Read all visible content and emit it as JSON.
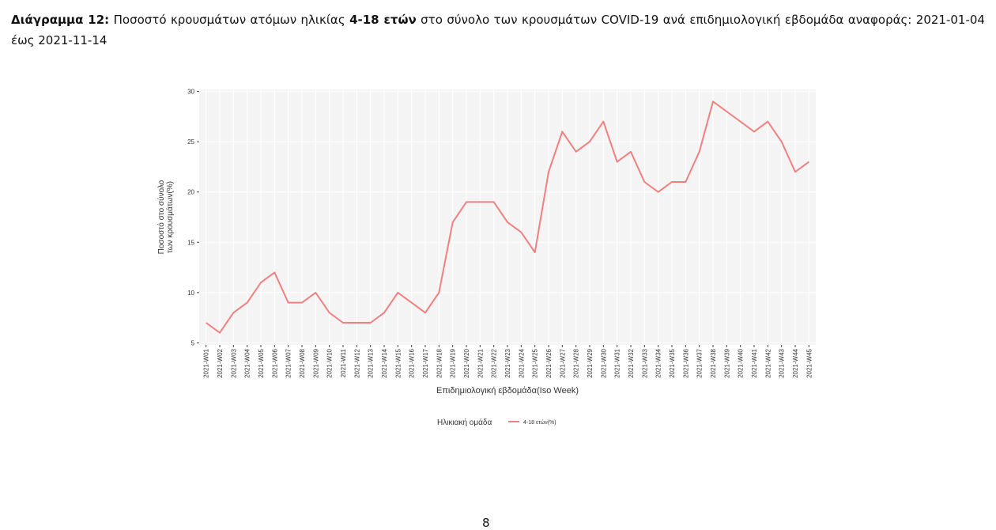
{
  "caption": {
    "label": "Διάγραμμα 12:",
    "text1": "Ποσοστό κρουσμάτων ατόμων ηλικίας",
    "bold": "4-18 ετών",
    "text2": "στο σύνολο των κρουσμάτων COVID-19 ανά επιδημιολογική εβδομάδα αναφοράς: 2021-01-04 έως 2021-11-14"
  },
  "page_number": "8",
  "chart_data": {
    "type": "line",
    "x_label": "Επιδημιολογική εβδομάδα(Iso Week)",
    "y_label": [
      "Ποσοστό στο σύνολο",
      "των κρουσμάτων(%)"
    ],
    "legend_title": "Ηλικιακή ομάδα",
    "categories": [
      "2021-W01",
      "2021-W02",
      "2021-W03",
      "2021-W04",
      "2021-W05",
      "2021-W06",
      "2021-W07",
      "2021-W08",
      "2021-W09",
      "2021-W10",
      "2021-W11",
      "2021-W12",
      "2021-W13",
      "2021-W14",
      "2021-W15",
      "2021-W16",
      "2021-W17",
      "2021-W18",
      "2021-W19",
      "2021-W20",
      "2021-W21",
      "2021-W22",
      "2021-W23",
      "2021-W24",
      "2021-W25",
      "2021-W26",
      "2021-W27",
      "2021-W28",
      "2021-W29",
      "2021-W30",
      "2021-W31",
      "2021-W32",
      "2021-W33",
      "2021-W34",
      "2021-W35",
      "2021-W36",
      "2021-W37",
      "2021-W38",
      "2021-W39",
      "2021-W40",
      "2021-W41",
      "2021-W42",
      "2021-W43",
      "2021-W44",
      "2021-W45"
    ],
    "series": [
      {
        "name": "4-18 ετών(%)",
        "color": "#f08080",
        "values": [
          7,
          6,
          8,
          9,
          11,
          12,
          9,
          9,
          10,
          8,
          7,
          7,
          7,
          8,
          10,
          9,
          8,
          10,
          17,
          19,
          19,
          19,
          17,
          16,
          14,
          22,
          26,
          24,
          25,
          27,
          23,
          24,
          21,
          20,
          21,
          21,
          24,
          29,
          28,
          27,
          26,
          27,
          25,
          22,
          23
        ]
      }
    ],
    "ylim": [
      4.8,
      30.2
    ],
    "yticks": [
      5,
      10,
      15,
      20,
      25,
      30
    ],
    "grid": true
  }
}
